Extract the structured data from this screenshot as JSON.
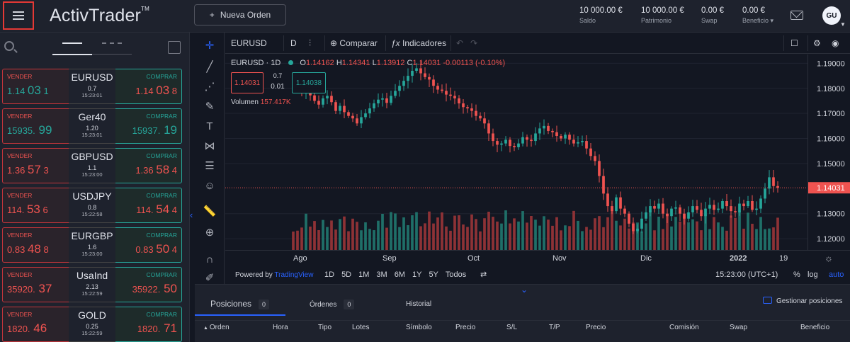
{
  "header": {
    "logo": "ActivTrader",
    "logo_tm": "TM",
    "new_order": "Nueva Orden",
    "stats": [
      {
        "value": "10 000.00 €",
        "label": "Saldo"
      },
      {
        "value": "10 000.00 €",
        "label": "Patrimonio"
      },
      {
        "value": "0.00 €",
        "label": "Swap"
      },
      {
        "value": "0.00 €",
        "label": "Beneficio"
      }
    ],
    "avatar": "GU"
  },
  "watchlist": [
    {
      "symbol": "EURUSD",
      "sell_label": "VENDER",
      "buy_label": "COMPRAR",
      "sell_a": "1.14 ",
      "sell_b": "03",
      "sell_c": " 1",
      "buy_a": "1.14 ",
      "buy_b": "03",
      "buy_c": " 8",
      "spread": "0.7",
      "time": "15:23:01",
      "sell_dir": "up",
      "buy_dir": "down"
    },
    {
      "symbol": "Ger40",
      "sell_label": "VENDER",
      "buy_label": "COMPRAR",
      "sell_a": "15935.",
      "sell_b": " 99",
      "sell_c": "",
      "buy_a": "15937.",
      "buy_b": " 19",
      "buy_c": "",
      "spread": "1.20",
      "time": "15:23:01",
      "sell_dir": "up",
      "buy_dir": "up"
    },
    {
      "symbol": "GBPUSD",
      "sell_label": "VENDER",
      "buy_label": "COMPRAR",
      "sell_a": "1.36 ",
      "sell_b": "57",
      "sell_c": " 3",
      "buy_a": "1.36 ",
      "buy_b": "58",
      "buy_c": " 4",
      "spread": "1.1",
      "time": "15:23:00",
      "sell_dir": "down",
      "buy_dir": "down"
    },
    {
      "symbol": "USDJPY",
      "sell_label": "VENDER",
      "buy_label": "COMPRAR",
      "sell_a": "114. ",
      "sell_b": "53",
      "sell_c": " 6",
      "buy_a": "114. ",
      "buy_b": "54",
      "buy_c": " 4",
      "spread": "0.8",
      "time": "15:22:58",
      "sell_dir": "down",
      "buy_dir": "down"
    },
    {
      "symbol": "EURGBP",
      "sell_label": "VENDER",
      "buy_label": "COMPRAR",
      "sell_a": "0.83 ",
      "sell_b": "48",
      "sell_c": " 8",
      "buy_a": "0.83 ",
      "buy_b": "50",
      "buy_c": " 4",
      "spread": "1.6",
      "time": "15:23:00",
      "sell_dir": "down",
      "buy_dir": "down"
    },
    {
      "symbol": "UsaInd",
      "sell_label": "VENDER",
      "buy_label": "COMPRAR",
      "sell_a": "35920.",
      "sell_b": " 37",
      "sell_c": "",
      "buy_a": "35922.",
      "buy_b": " 50",
      "buy_c": "",
      "spread": "2.13",
      "time": "15:22:59",
      "sell_dir": "down",
      "buy_dir": "down"
    },
    {
      "symbol": "GOLD",
      "sell_label": "VENDER",
      "buy_label": "COMPRAR",
      "sell_a": "1820.",
      "sell_b": " 46",
      "sell_c": "",
      "buy_a": "1820.",
      "buy_b": " 71",
      "buy_c": "",
      "spread": "0.25",
      "time": "15:22:59",
      "sell_dir": "down",
      "buy_dir": "down"
    }
  ],
  "chart_toolbar": {
    "symbol": "EURUSD",
    "interval": "D",
    "compare": "Comparar",
    "indicators": "Indicadores"
  },
  "legend": {
    "title": "EURUSD · 1D",
    "o_label": "O",
    "o": "1.14162",
    "h_label": "H",
    "h": "1.14341",
    "l_label": "L",
    "l": "1.13912",
    "c_label": "C",
    "c": "1.14031",
    "change": "-0.00113 (-0.10%)",
    "volume_label": "Volumen",
    "volume": "157.417K"
  },
  "trade_box": {
    "sell": "1.14031",
    "spread_top": "0.7",
    "spread": "0.01",
    "buy": "1.14038"
  },
  "chart_data": {
    "type": "candlestick",
    "x_ticks": [
      "Ago",
      "Sep",
      "Oct",
      "Nov",
      "Dic",
      "2022",
      "19"
    ],
    "y_ticks": [
      "1.19000",
      "1.18000",
      "1.17000",
      "1.16000",
      "1.15000",
      "1.14031",
      "1.13000",
      "1.12000"
    ],
    "ylim": [
      1.1155,
      1.1935
    ],
    "last_price": 1.14031,
    "closes": [
      1.183,
      1.182,
      1.1785,
      1.179,
      1.1772,
      1.175,
      1.1735,
      1.176,
      1.177,
      1.1745,
      1.171,
      1.173,
      1.1705,
      1.169,
      1.168,
      1.166,
      1.1685,
      1.17,
      1.172,
      1.174,
      1.1755,
      1.176,
      1.1742,
      1.177,
      1.179,
      1.181,
      1.183,
      1.185,
      1.187,
      1.188,
      1.186,
      1.1845,
      1.1835,
      1.181,
      1.1795,
      1.179,
      1.1775,
      1.177,
      1.176,
      1.174,
      1.1725,
      1.172,
      1.171,
      1.169,
      1.168,
      1.166,
      1.162,
      1.159,
      1.1575,
      1.158,
      1.1595,
      1.157,
      1.1565,
      1.158,
      1.1605,
      1.1595,
      1.159,
      1.162,
      1.164,
      1.165,
      1.163,
      1.1625,
      1.161,
      1.16,
      1.1615,
      1.1595,
      1.158,
      1.1585,
      1.159,
      1.156,
      1.153,
      1.151,
      1.145,
      1.138,
      1.133,
      1.131,
      1.1365,
      1.132,
      1.13,
      1.126,
      1.123,
      1.124,
      1.128,
      1.1305,
      1.133,
      1.132,
      1.134,
      1.13,
      1.129,
      1.132,
      1.1325,
      1.13,
      1.128,
      1.1305,
      1.133,
      1.1315,
      1.129,
      1.132,
      1.1335,
      1.1315,
      1.132,
      1.135,
      1.133,
      1.131,
      1.1305,
      1.134,
      1.133,
      1.135,
      1.1315,
      1.132,
      1.136,
      1.14,
      1.1445,
      1.141,
      1.1403
    ],
    "volume_note": "relative volume bars below price"
  },
  "bottom_bar": {
    "powered": "Powered by ",
    "tv": "TradingView",
    "ranges": [
      "1D",
      "5D",
      "1M",
      "3M",
      "6M",
      "1Y",
      "5Y",
      "Todos"
    ],
    "time": "15:23:00 (UTC+1)",
    "pct": "%",
    "log": "log",
    "auto": "auto"
  },
  "panel": {
    "tabs": [
      {
        "label": "Posiciones",
        "count": "0"
      },
      {
        "label": "Órdenes",
        "count": "0"
      },
      {
        "label": "Historial",
        "count": ""
      }
    ],
    "manage": "Gestionar posiciones",
    "columns": [
      "Orden",
      "Hora",
      "Tipo",
      "Lotes",
      "Símbolo",
      "Precio",
      "S/L",
      "T/P",
      "Precio",
      "Comisión",
      "Swap",
      "Beneficio"
    ]
  },
  "colors": {
    "up": "#26a69a",
    "down": "#ef5350",
    "accent": "#2962ff"
  }
}
